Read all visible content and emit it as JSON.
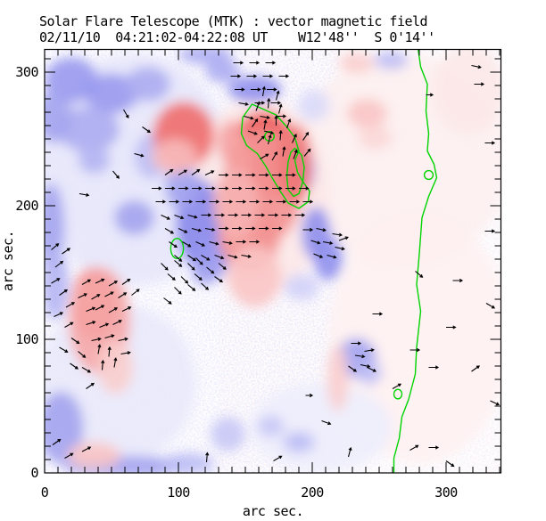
{
  "chart_data": {
    "type": "heatmap",
    "description": "vector magnetogram map with polarity blobs, field vectors and neutral-line contours",
    "title": "Solar Flare Telescope (MTK) : vector magnetic field",
    "subtitle": "02/11/10  04:21:02-04:22:08 UT    W12'48''  S 0'14''",
    "xlabel": "arc sec.",
    "ylabel": "arc sec.",
    "xlim": [
      0,
      341
    ],
    "ylim": [
      0,
      317
    ],
    "xticks": [
      0,
      100,
      200,
      300
    ],
    "yticks": [
      0,
      100,
      200,
      300
    ],
    "minor_tick_step": 10,
    "major_tick_step": 100,
    "colors": {
      "positive_polarity": "#ea3c3c",
      "negative_polarity": "#4646e1",
      "contour": "#00d400",
      "vectors": "#000000",
      "background": "#ffffff"
    },
    "blobs": [
      [
        67,
        227,
        73,
        87,
        -1,
        0.13
      ],
      [
        53,
        67,
        60,
        60,
        -1,
        0.12
      ],
      [
        267,
        234,
        80,
        80,
        1,
        0.08
      ],
      [
        280,
        101,
        67,
        93,
        1,
        0.07
      ],
      [
        160,
        207,
        53,
        73,
        1,
        0.12
      ],
      [
        207,
        34,
        53,
        33,
        -1,
        0.1
      ],
      [
        20,
        294,
        20,
        17,
        -1,
        0.55
      ],
      [
        50,
        284,
        20,
        15,
        -1,
        0.55
      ],
      [
        33,
        257,
        23,
        17,
        -1,
        0.45
      ],
      [
        77,
        291,
        17,
        13,
        -1,
        0.45
      ],
      [
        7,
        267,
        13,
        20,
        -1,
        0.5
      ],
      [
        37,
        234,
        12,
        10,
        -1,
        0.4
      ],
      [
        67,
        191,
        15,
        13,
        -1,
        0.5
      ],
      [
        115,
        187,
        17,
        33,
        -1,
        0.65
      ],
      [
        103,
        214,
        13,
        17,
        -1,
        0.5
      ],
      [
        125,
        159,
        12,
        15,
        -1,
        0.55
      ],
      [
        5,
        184,
        10,
        33,
        -1,
        0.5
      ],
      [
        8,
        141,
        10,
        27,
        -1,
        0.4
      ],
      [
        12,
        34,
        17,
        27,
        -1,
        0.5
      ],
      [
        60,
        5,
        47,
        8,
        -1,
        0.5
      ],
      [
        107,
        7,
        20,
        8,
        -1,
        0.35
      ],
      [
        120,
        149,
        10,
        8,
        -1,
        0.5
      ],
      [
        157,
        287,
        20,
        10,
        -1,
        0.6
      ],
      [
        133,
        301,
        13,
        9,
        -1,
        0.45
      ],
      [
        193,
        227,
        9,
        17,
        -1,
        0.55
      ],
      [
        203,
        179,
        11,
        20,
        -1,
        0.6
      ],
      [
        212,
        161,
        11,
        17,
        -1,
        0.6
      ],
      [
        233,
        86,
        15,
        15,
        -1,
        0.5
      ],
      [
        243,
        75,
        9,
        9,
        -1,
        0.35
      ],
      [
        192,
        139,
        13,
        10,
        -1,
        0.25
      ],
      [
        137,
        29,
        13,
        13,
        -1,
        0.3
      ],
      [
        169,
        35,
        10,
        8,
        -1,
        0.3
      ],
      [
        190,
        23,
        12,
        8,
        -1,
        0.35
      ],
      [
        259,
        309,
        13,
        7,
        -1,
        0.35
      ],
      [
        201,
        275,
        12,
        12,
        -1,
        0.2
      ],
      [
        120,
        313,
        20,
        7,
        -1,
        0.45
      ],
      [
        80,
        237,
        13,
        17,
        -1,
        0.35
      ],
      [
        104,
        253,
        23,
        25,
        1,
        0.75
      ],
      [
        97,
        237,
        17,
        13,
        1,
        0.35
      ],
      [
        164,
        254,
        20,
        17,
        1,
        0.85
      ],
      [
        170,
        224,
        17,
        20,
        1,
        0.85
      ],
      [
        163,
        214,
        30,
        43,
        1,
        0.55
      ],
      [
        153,
        177,
        23,
        27,
        1,
        0.55
      ],
      [
        143,
        201,
        17,
        27,
        1,
        0.4
      ],
      [
        157,
        147,
        20,
        23,
        1,
        0.3
      ],
      [
        187,
        231,
        13,
        30,
        1,
        0.7
      ],
      [
        140,
        247,
        10,
        17,
        1,
        0.5
      ],
      [
        37,
        127,
        17,
        27,
        1,
        0.7
      ],
      [
        41,
        114,
        23,
        40,
        1,
        0.45
      ],
      [
        53,
        79,
        13,
        20,
        1,
        0.25
      ],
      [
        233,
        307,
        13,
        8,
        1,
        0.25
      ],
      [
        241,
        269,
        15,
        11,
        1,
        0.3
      ],
      [
        247,
        251,
        13,
        9,
        1,
        0.2
      ],
      [
        219,
        71,
        8,
        25,
        1,
        0.25
      ],
      [
        317,
        287,
        27,
        33,
        1,
        0.12
      ],
      [
        37,
        13,
        20,
        10,
        1,
        0.3
      ]
    ],
    "contours": {
      "boundary_line": [
        [
          279,
          318
        ],
        [
          281,
          304
        ],
        [
          286,
          291
        ],
        [
          285,
          271
        ],
        [
          287,
          254
        ],
        [
          286,
          241
        ],
        [
          291,
          231
        ],
        [
          293,
          221
        ],
        [
          287,
          207
        ],
        [
          282,
          191
        ],
        [
          280,
          164
        ],
        [
          278,
          141
        ],
        [
          281,
          121
        ],
        [
          278,
          94
        ],
        [
          277,
          74
        ],
        [
          272,
          55
        ],
        [
          267,
          42
        ],
        [
          265,
          26
        ],
        [
          261,
          11
        ],
        [
          261,
          -1
        ]
      ],
      "loops": [
        [
          [
            155,
            276
          ],
          [
            148,
            266
          ],
          [
            147,
            254
          ],
          [
            151,
            245
          ],
          [
            159,
            239
          ],
          [
            165,
            230
          ],
          [
            170,
            221
          ],
          [
            176,
            211
          ],
          [
            182,
            202
          ],
          [
            190,
            198
          ],
          [
            197,
            203
          ],
          [
            198,
            211
          ],
          [
            193,
            218
          ],
          [
            189,
            225
          ],
          [
            187,
            234
          ],
          [
            190,
            241
          ],
          [
            187,
            251
          ],
          [
            181,
            259
          ],
          [
            173,
            268
          ],
          [
            164,
            272
          ]
        ],
        [
          [
            187,
            243
          ],
          [
            192,
            238
          ],
          [
            194,
            229
          ],
          [
            193,
            218
          ],
          [
            190,
            209
          ],
          [
            186,
            207
          ],
          [
            182,
            212
          ],
          [
            181,
            222
          ],
          [
            182,
            233
          ],
          [
            184,
            240
          ]
        ]
      ],
      "circles": [
        [
          168,
          252,
          3.5,
          3.5
        ],
        [
          99,
          168,
          4.7,
          7.5
        ],
        [
          287,
          223,
          3.3,
          3.3
        ],
        [
          264,
          59,
          3,
          3.5
        ]
      ]
    },
    "vectors": [
      [
        319,
        305,
        -12
      ],
      [
        321,
        291,
        0
      ],
      [
        285,
        283,
        0,
        5
      ],
      [
        141,
        307,
        0
      ],
      [
        153,
        307,
        0
      ],
      [
        165,
        307,
        0
      ],
      [
        139,
        297,
        0
      ],
      [
        151,
        297,
        0
      ],
      [
        163,
        297,
        0
      ],
      [
        175,
        297,
        0
      ],
      [
        142,
        287,
        0
      ],
      [
        154,
        287,
        0
      ],
      [
        166,
        287,
        0
      ],
      [
        145,
        277,
        -10
      ],
      [
        157,
        277,
        0
      ],
      [
        169,
        277,
        0
      ],
      [
        149,
        267,
        -15
      ],
      [
        161,
        267,
        -10
      ],
      [
        173,
        267,
        0
      ],
      [
        152,
        256,
        -20
      ],
      [
        164,
        256,
        -15
      ],
      [
        90,
        223,
        35
      ],
      [
        100,
        223,
        30
      ],
      [
        110,
        223,
        35
      ],
      [
        120,
        223,
        25
      ],
      [
        130,
        223,
        0
      ],
      [
        140,
        223,
        0
      ],
      [
        150,
        223,
        0
      ],
      [
        160,
        223,
        0
      ],
      [
        170,
        223,
        0
      ],
      [
        180,
        223,
        0
      ],
      [
        80,
        213,
        0
      ],
      [
        90,
        213,
        0
      ],
      [
        100,
        213,
        0
      ],
      [
        110,
        213,
        0
      ],
      [
        120,
        213,
        0
      ],
      [
        130,
        213,
        0
      ],
      [
        140,
        213,
        0
      ],
      [
        150,
        213,
        0
      ],
      [
        160,
        213,
        0
      ],
      [
        170,
        213,
        0
      ],
      [
        180,
        213,
        0
      ],
      [
        190,
        213,
        0
      ],
      [
        83,
        203,
        0
      ],
      [
        93,
        203,
        0
      ],
      [
        103,
        203,
        0
      ],
      [
        113,
        203,
        0
      ],
      [
        123,
        203,
        0
      ],
      [
        133,
        203,
        0
      ],
      [
        143,
        203,
        0
      ],
      [
        153,
        203,
        0
      ],
      [
        163,
        203,
        0
      ],
      [
        173,
        203,
        0
      ],
      [
        183,
        203,
        0
      ],
      [
        193,
        203,
        0
      ],
      [
        87,
        193,
        -25
      ],
      [
        97,
        193,
        -20
      ],
      [
        107,
        193,
        -15
      ],
      [
        117,
        193,
        0
      ],
      [
        127,
        193,
        0
      ],
      [
        137,
        193,
        0
      ],
      [
        147,
        193,
        0
      ],
      [
        157,
        193,
        0
      ],
      [
        167,
        193,
        0
      ],
      [
        177,
        193,
        0
      ],
      [
        187,
        193,
        0
      ],
      [
        90,
        183,
        -30
      ],
      [
        100,
        183,
        -25
      ],
      [
        110,
        183,
        -15
      ],
      [
        120,
        183,
        -10
      ],
      [
        130,
        183,
        0
      ],
      [
        140,
        183,
        0
      ],
      [
        150,
        183,
        0
      ],
      [
        160,
        183,
        0
      ],
      [
        170,
        183,
        0
      ],
      [
        93,
        173,
        -35
      ],
      [
        103,
        173,
        -30
      ],
      [
        113,
        173,
        -25
      ],
      [
        123,
        173,
        -15
      ],
      [
        133,
        173,
        -10
      ],
      [
        143,
        173,
        0
      ],
      [
        153,
        173,
        0
      ],
      [
        97,
        163,
        -40
      ],
      [
        107,
        163,
        -35
      ],
      [
        117,
        163,
        -30
      ],
      [
        127,
        163,
        -20
      ],
      [
        137,
        163,
        -15
      ],
      [
        147,
        163,
        -10
      ],
      [
        158,
        271,
        70
      ],
      [
        167,
        273,
        85
      ],
      [
        175,
        269,
        75
      ],
      [
        155,
        259,
        55
      ],
      [
        164,
        257,
        80
      ],
      [
        173,
        260,
        90
      ],
      [
        181,
        258,
        70
      ],
      [
        159,
        247,
        45
      ],
      [
        167,
        246,
        75
      ],
      [
        176,
        249,
        85
      ],
      [
        185,
        247,
        65
      ],
      [
        193,
        249,
        55
      ],
      [
        161,
        235,
        30
      ],
      [
        170,
        234,
        60
      ],
      [
        178,
        237,
        80
      ],
      [
        186,
        235,
        70
      ],
      [
        194,
        237,
        50
      ],
      [
        163,
        282,
        80
      ],
      [
        173,
        279,
        75
      ],
      [
        28,
        141,
        30
      ],
      [
        38,
        142,
        25
      ],
      [
        48,
        140,
        30
      ],
      [
        58,
        141,
        35
      ],
      [
        25,
        131,
        25
      ],
      [
        35,
        130,
        30
      ],
      [
        45,
        132,
        28
      ],
      [
        55,
        131,
        32
      ],
      [
        65,
        133,
        38
      ],
      [
        31,
        121,
        22
      ],
      [
        38,
        122,
        28
      ],
      [
        48,
        120,
        30
      ],
      [
        58,
        121,
        26
      ],
      [
        31,
        111,
        18
      ],
      [
        41,
        109,
        22
      ],
      [
        51,
        111,
        26
      ],
      [
        35,
        99,
        12
      ],
      [
        45,
        101,
        16
      ],
      [
        55,
        99,
        12
      ],
      [
        40,
        89,
        80
      ],
      [
        48,
        87,
        85
      ],
      [
        57,
        89,
        10
      ],
      [
        43,
        77,
        85
      ],
      [
        52,
        79,
        80
      ],
      [
        5,
        167,
        40
      ],
      [
        13,
        164,
        35
      ],
      [
        8,
        154,
        38
      ],
      [
        5,
        142,
        30
      ],
      [
        11,
        133,
        35
      ],
      [
        16,
        124,
        30
      ],
      [
        7,
        117,
        25
      ],
      [
        15,
        109,
        30
      ],
      [
        20,
        101,
        -35
      ],
      [
        11,
        94,
        -30
      ],
      [
        25,
        91,
        -40
      ],
      [
        19,
        82,
        -35
      ],
      [
        28,
        79,
        -30
      ],
      [
        87,
        157,
        -45
      ],
      [
        97,
        159,
        -40
      ],
      [
        107,
        157,
        -45
      ],
      [
        92,
        149,
        -40
      ],
      [
        102,
        147,
        -45
      ],
      [
        112,
        149,
        -40
      ],
      [
        97,
        139,
        -45
      ],
      [
        107,
        141,
        -40
      ],
      [
        89,
        131,
        -38
      ],
      [
        117,
        142,
        -42
      ],
      [
        121,
        154,
        -40
      ],
      [
        113,
        161,
        -45
      ],
      [
        127,
        147,
        -35
      ],
      [
        130,
        157,
        -40
      ],
      [
        193,
        182,
        0
      ],
      [
        203,
        183,
        -12
      ],
      [
        199,
        174,
        -18
      ],
      [
        208,
        173,
        -10
      ],
      [
        201,
        164,
        -22
      ],
      [
        211,
        163,
        -15
      ],
      [
        215,
        179,
        -8
      ],
      [
        217,
        169,
        -12
      ],
      [
        220,
        174,
        20
      ],
      [
        229,
        97,
        0
      ],
      [
        232,
        88,
        -8
      ],
      [
        227,
        80,
        -35
      ],
      [
        236,
        81,
        -12
      ],
      [
        241,
        79,
        -25
      ],
      [
        239,
        91,
        10
      ],
      [
        59,
        272,
        -60
      ],
      [
        67,
        239,
        -15
      ],
      [
        51,
        226,
        -50
      ],
      [
        26,
        209,
        -10
      ],
      [
        73,
        259,
        -35
      ],
      [
        31,
        63,
        35
      ],
      [
        6,
        21,
        35
      ],
      [
        15,
        11,
        30
      ],
      [
        28,
        16,
        28
      ],
      [
        121,
        8,
        85
      ],
      [
        171,
        9,
        30
      ],
      [
        245,
        119,
        0
      ],
      [
        273,
        92,
        0
      ],
      [
        287,
        79,
        0
      ],
      [
        319,
        76,
        35
      ],
      [
        260,
        63,
        30
      ],
      [
        195,
        58,
        0,
        5
      ],
      [
        207,
        39,
        -20
      ],
      [
        227,
        12,
        75
      ],
      [
        273,
        17,
        30
      ],
      [
        287,
        19,
        0
      ],
      [
        300,
        9,
        -35
      ],
      [
        305,
        144,
        0
      ],
      [
        300,
        109,
        0
      ],
      [
        277,
        151,
        -40
      ],
      [
        329,
        247,
        0
      ],
      [
        329,
        181,
        0
      ],
      [
        330,
        127,
        -30
      ],
      [
        333,
        54,
        -25
      ]
    ]
  }
}
